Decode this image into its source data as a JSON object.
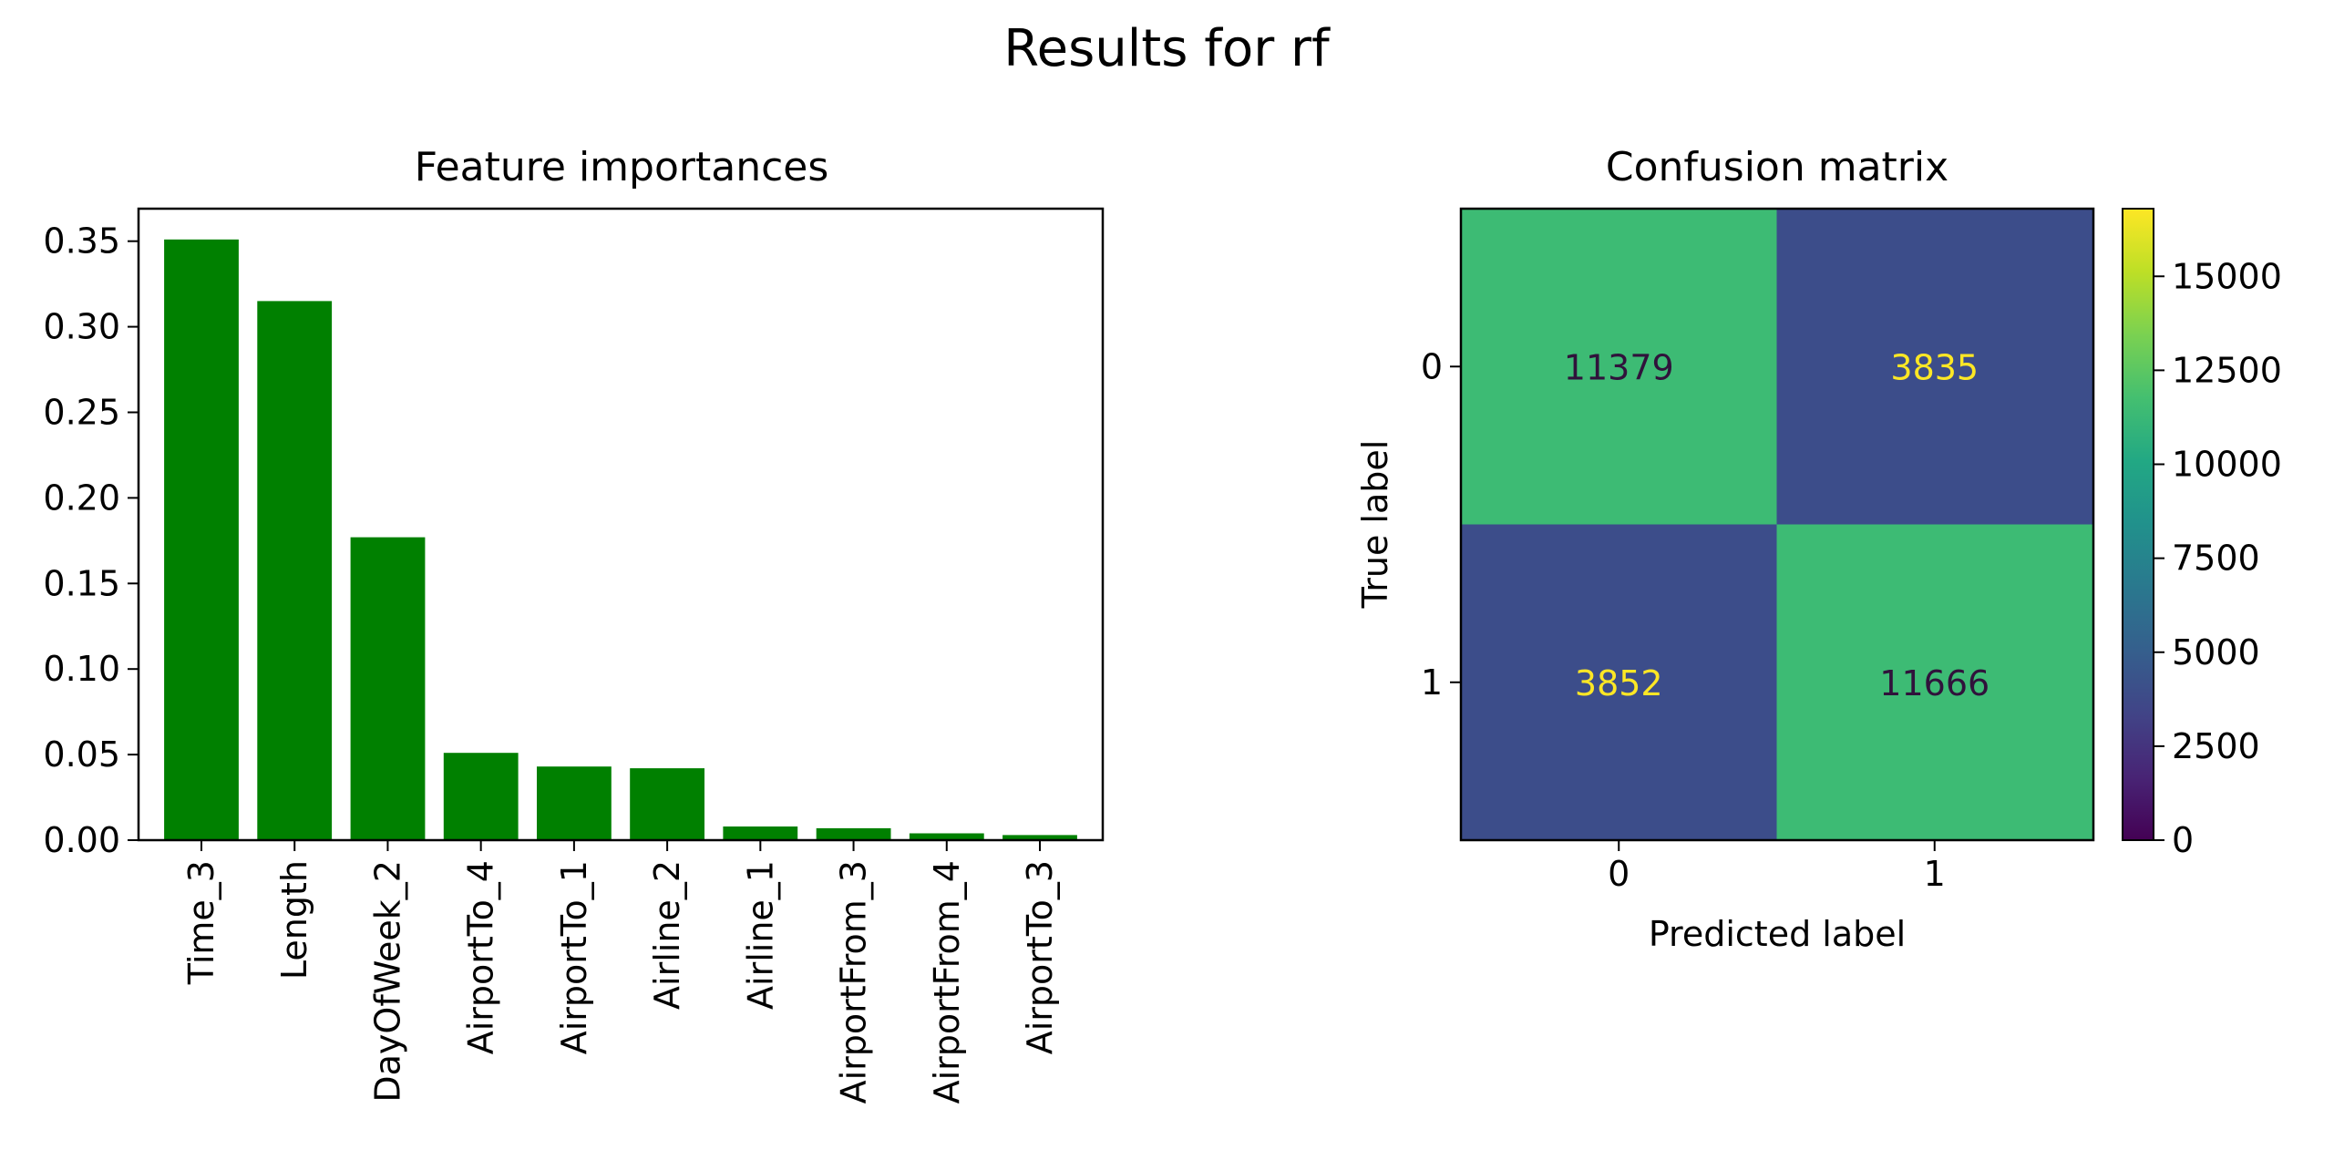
{
  "figure": {
    "suptitle": "Results for rf"
  },
  "chart_data": [
    {
      "type": "bar",
      "title": "Feature importances",
      "xlabel": "",
      "ylabel": "",
      "categories": [
        "Time_3",
        "Length",
        "DayOfWeek_2",
        "AirportTo_4",
        "AirportTo_1",
        "Airline_2",
        "Airline_1",
        "AirportFrom_3",
        "AirportFrom_4",
        "AirportTo_3"
      ],
      "values": [
        0.351,
        0.315,
        0.177,
        0.051,
        0.043,
        0.042,
        0.008,
        0.007,
        0.004,
        0.003
      ],
      "ylim": [
        0,
        0.369
      ],
      "yticks": [
        "0.00",
        "0.05",
        "0.10",
        "0.15",
        "0.20",
        "0.25",
        "0.30",
        "0.35"
      ],
      "bar_color": "#008000",
      "grid": false
    },
    {
      "type": "heatmap",
      "title": "Confusion matrix",
      "xlabel": "Predicted label",
      "ylabel": "True label",
      "x_categories": [
        "0",
        "1"
      ],
      "y_categories": [
        "0",
        "1"
      ],
      "values": [
        [
          11379,
          3835
        ],
        [
          3852,
          11666
        ]
      ],
      "colormap": "viridis",
      "cell_colors": [
        [
          "#3dbb74",
          "#3c4d8a"
        ],
        [
          "#3c4d8a",
          "#3dbb74"
        ]
      ],
      "text_colors": [
        [
          "#30123b",
          "#fde725"
        ],
        [
          "#fde725",
          "#30123b"
        ]
      ],
      "colorbar": {
        "range": [
          0,
          16800
        ],
        "ticks": [
          "0",
          "2500",
          "5000",
          "7500",
          "10000",
          "12500",
          "15000"
        ],
        "tick_values": [
          0,
          2500,
          5000,
          7500,
          10000,
          12500,
          15000
        ]
      }
    }
  ]
}
